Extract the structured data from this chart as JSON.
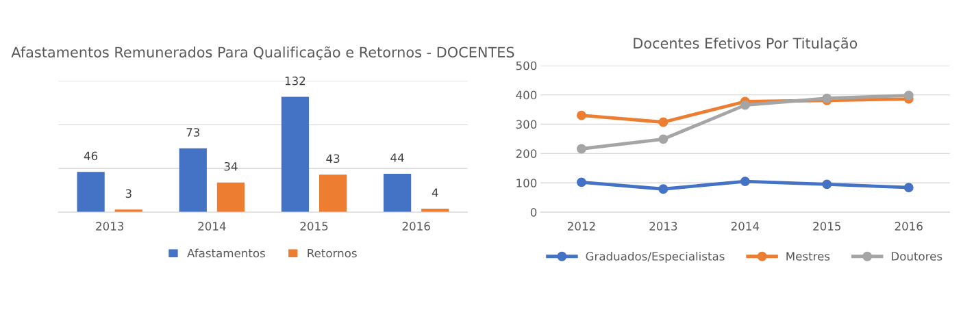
{
  "chart_data": [
    {
      "type": "bar",
      "title": "Afastamentos Remunerados Para Qualificação e Retornos - DOCENTES",
      "categories": [
        "2013",
        "2014",
        "2015",
        "2016"
      ],
      "series": [
        {
          "name": "Afastamentos",
          "color": "#4472c4",
          "values": [
            46,
            73,
            132,
            44
          ]
        },
        {
          "name": "Retornos",
          "color": "#ed7d31",
          "values": [
            3,
            34,
            43,
            4
          ]
        }
      ],
      "ylim": [
        0,
        150
      ],
      "yticks": [
        {
          "value": 0,
          "label": null
        },
        {
          "value": 50,
          "label": null
        },
        {
          "value": 100,
          "label": null
        },
        {
          "value": 150,
          "label": null
        }
      ],
      "tick_labels": "x",
      "grid": "y",
      "legend": "bottom",
      "data_labels": true
    },
    {
      "type": "line",
      "title": "Docentes Efetivos Por Titulação",
      "categories": [
        "2012",
        "2013",
        "2014",
        "2015",
        "2016"
      ],
      "series": [
        {
          "name": "Graduados/Especialistas",
          "color": "#4472c4",
          "values": [
            102,
            79,
            105,
            95,
            84
          ]
        },
        {
          "name": "Mestres",
          "color": "#ed7d31",
          "values": [
            330,
            307,
            377,
            381,
            386
          ]
        },
        {
          "name": "Doutores",
          "color": "#a5a5a5",
          "values": [
            216,
            249,
            365,
            388,
            398
          ]
        }
      ],
      "ylim": [
        0,
        500
      ],
      "yticks": [
        0,
        100,
        200,
        300,
        400,
        500
      ],
      "grid": "y",
      "legend": "bottom",
      "marker": "circle",
      "line_style": "solid"
    }
  ]
}
